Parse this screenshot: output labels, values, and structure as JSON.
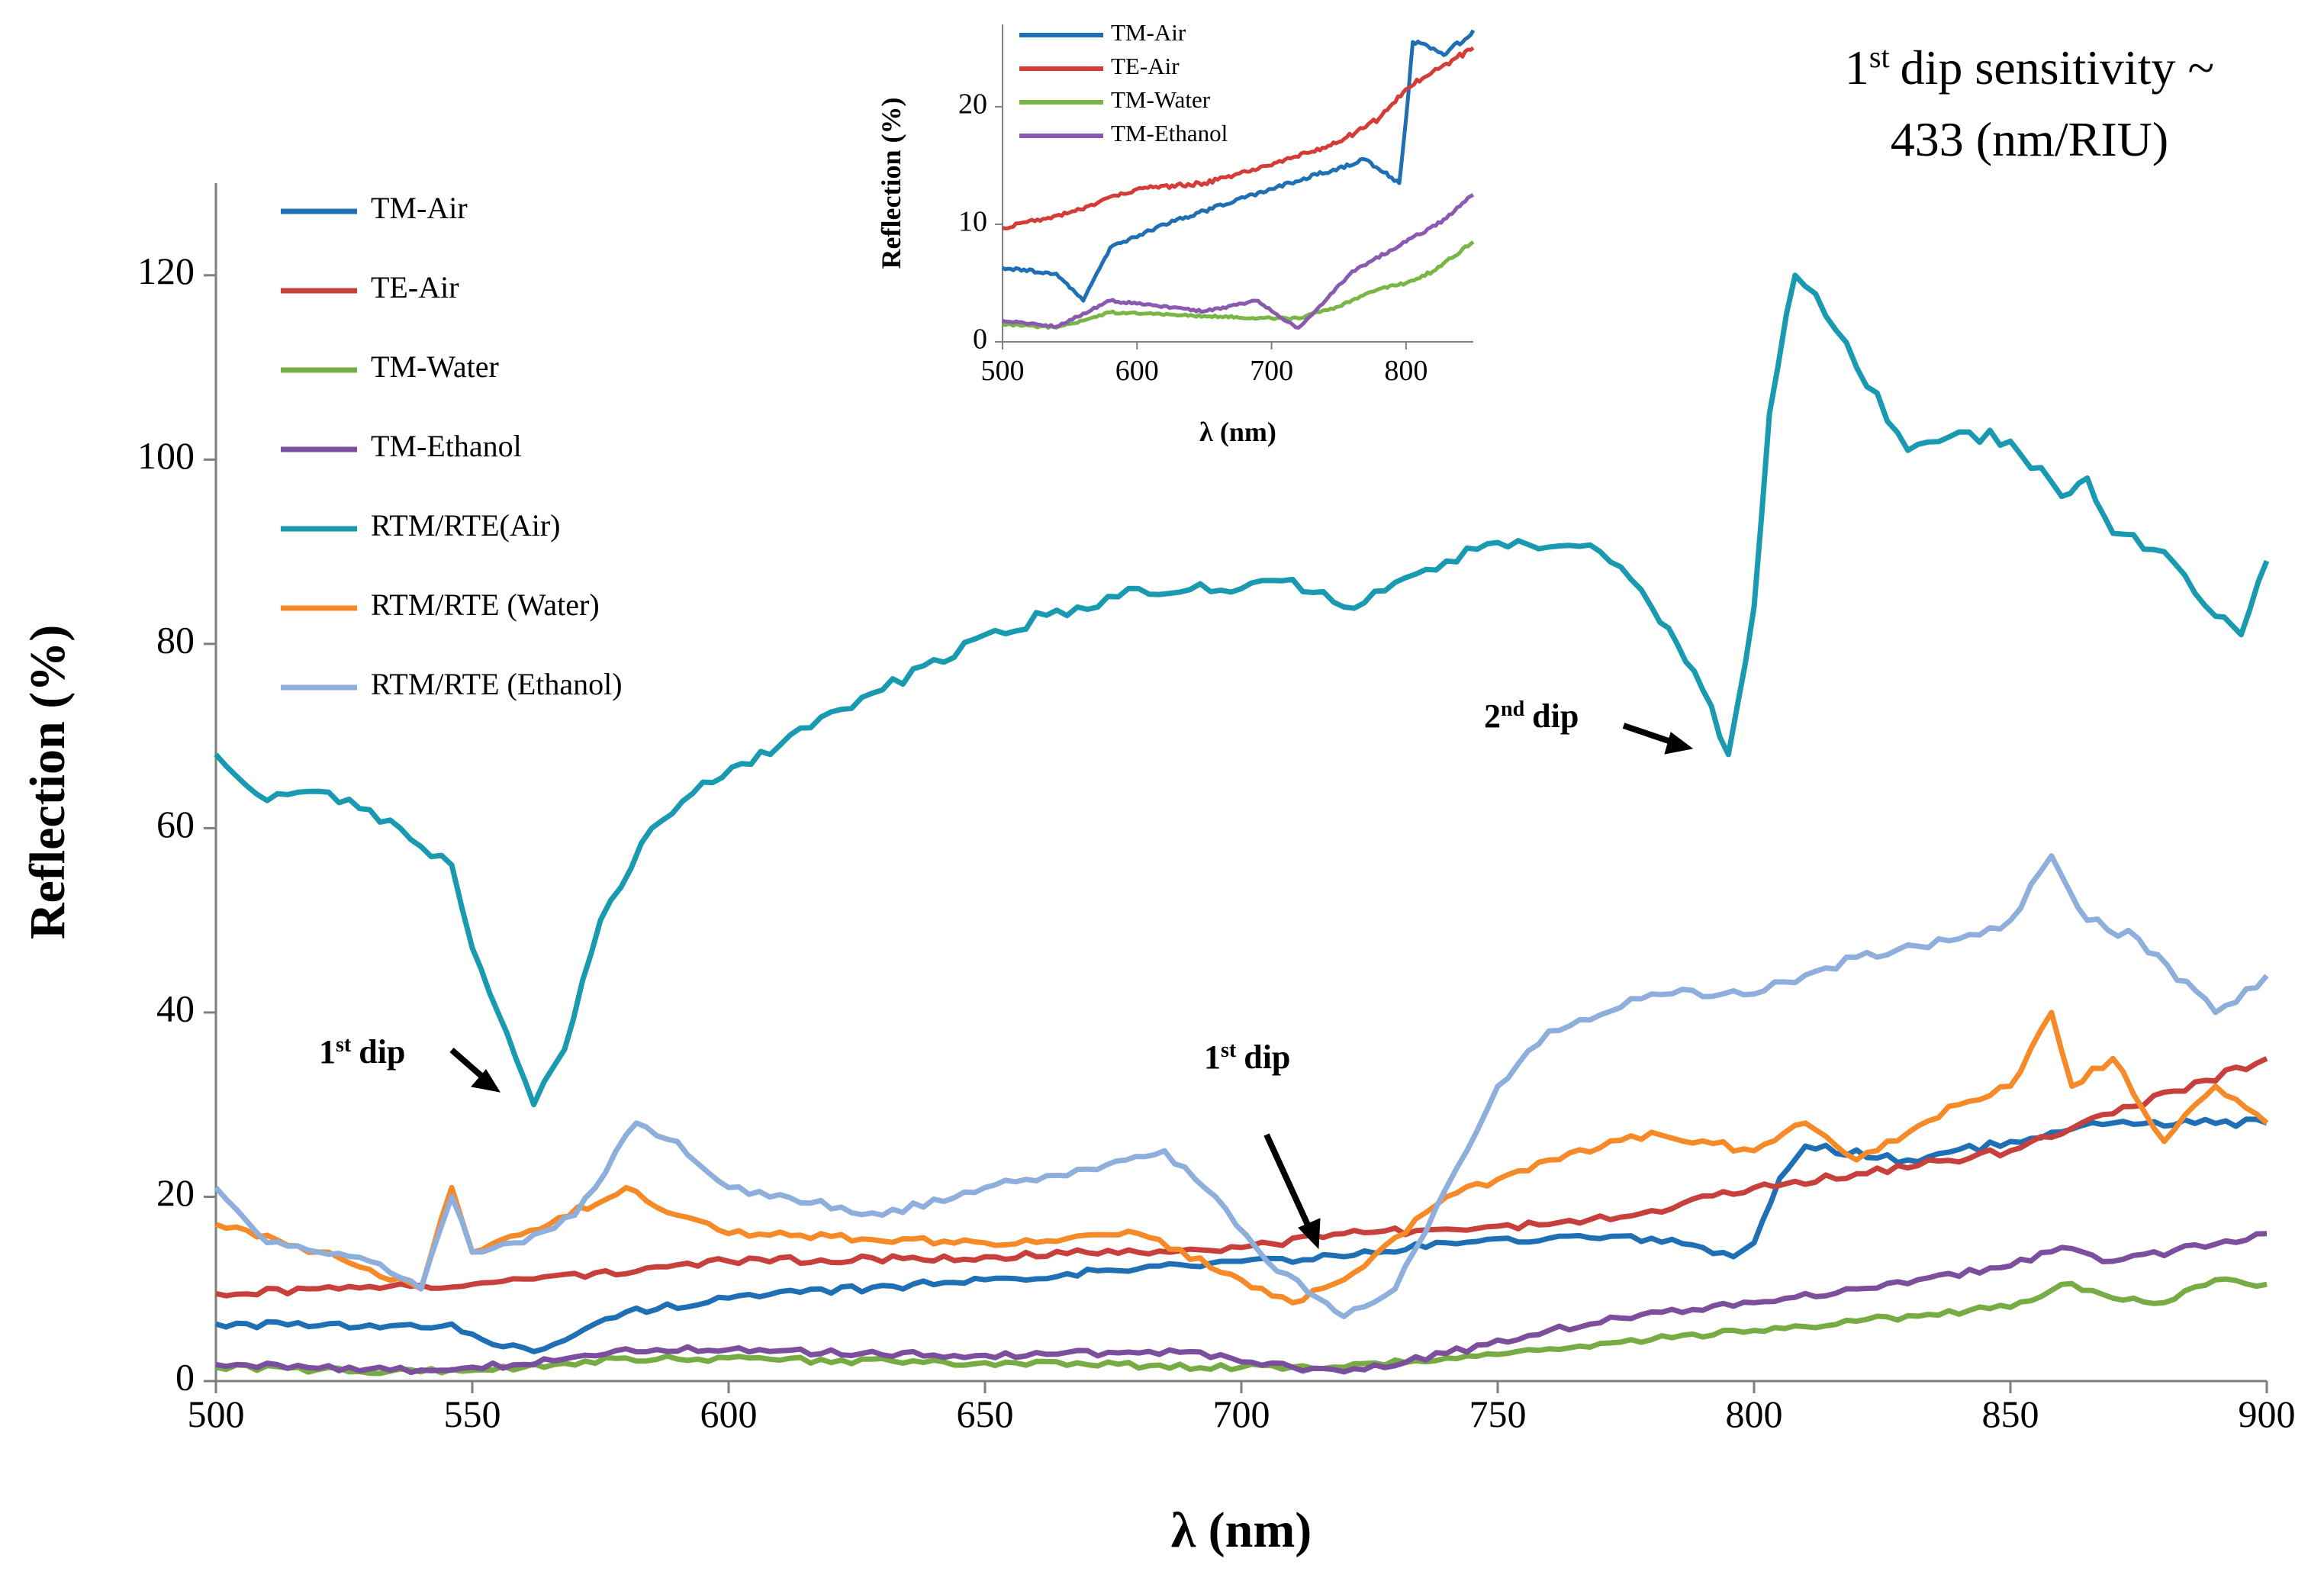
{
  "chart_data": [
    {
      "id": "main",
      "type": "line",
      "title": "",
      "xlabel": "λ (nm)",
      "ylabel": "Reflection (%)",
      "xlim": [
        500,
        900
      ],
      "ylim": [
        0,
        130
      ],
      "xticks": [
        500,
        550,
        600,
        650,
        700,
        750,
        800,
        850,
        900
      ],
      "yticks": [
        0,
        20,
        40,
        60,
        80,
        100,
        120
      ],
      "grid": false,
      "legend_position": "top-left",
      "series": [
        {
          "name": "TM-Air",
          "color": "#1f6fb4",
          "x": [
            500,
            520,
            540,
            546,
            552,
            562,
            570,
            580,
            600,
            650,
            700,
            720,
            740,
            760,
            780,
            790,
            796,
            800,
            805,
            810,
            830,
            850,
            870,
            900
          ],
          "y": [
            6.2,
            6.0,
            5.8,
            6.2,
            4.5,
            3.2,
            5.0,
            7.5,
            9.0,
            11.0,
            13.0,
            13.5,
            15.0,
            15.5,
            15.5,
            14.5,
            13.5,
            15.0,
            22.0,
            25.5,
            24.0,
            26.0,
            28.0,
            28.0
          ]
        },
        {
          "name": "TE-Air",
          "color": "#c8403c",
          "x": [
            500,
            550,
            600,
            650,
            700,
            720,
            740,
            760,
            780,
            800,
            820,
            850,
            870,
            900
          ],
          "y": [
            9.5,
            10.5,
            13.0,
            13.5,
            14.5,
            16.0,
            16.5,
            17.0,
            18.5,
            21.0,
            22.5,
            25.0,
            29.0,
            35.0
          ]
        },
        {
          "name": "TM-Water",
          "color": "#77ab43",
          "x": [
            500,
            540,
            560,
            580,
            650,
            700,
            720,
            740,
            760,
            780,
            800,
            820,
            850,
            860,
            870,
            880,
            890,
            900
          ],
          "y": [
            1.5,
            1.0,
            1.5,
            2.5,
            2.0,
            1.5,
            1.5,
            2.5,
            3.5,
            4.5,
            5.5,
            6.5,
            8.0,
            10.5,
            9.0,
            8.5,
            11.0,
            10.5
          ]
        },
        {
          "name": "TM-Ethanol",
          "color": "#7b4f9e",
          "x": [
            500,
            540,
            560,
            580,
            650,
            690,
            710,
            720,
            740,
            760,
            780,
            800,
            820,
            850,
            860,
            870,
            900
          ],
          "y": [
            1.8,
            1.2,
            1.8,
            3.5,
            2.8,
            3.2,
            1.5,
            1.0,
            3.0,
            5.5,
            7.5,
            8.5,
            10.0,
            12.5,
            14.5,
            13.0,
            16.0
          ]
        },
        {
          "name": "RTM/RTE(Air)",
          "color": "#199ab0",
          "x": [
            500,
            510,
            520,
            530,
            540,
            546,
            550,
            555,
            562,
            568,
            575,
            585,
            595,
            610,
            630,
            650,
            680,
            700,
            710,
            720,
            740,
            750,
            770,
            780,
            785,
            790,
            795,
            800,
            803,
            808,
            812,
            820,
            830,
            840,
            850,
            860,
            865,
            870,
            880,
            890,
            895,
            900
          ],
          "y": [
            68,
            63,
            64,
            62,
            58,
            56,
            47,
            40,
            30,
            36,
            50,
            60,
            65,
            69,
            75,
            81,
            86,
            86,
            87,
            84,
            89,
            91,
            90,
            84,
            80,
            75,
            68,
            84,
            105,
            120,
            118,
            110,
            101,
            103,
            102,
            96,
            98,
            92,
            90,
            83,
            81,
            89
          ]
        },
        {
          "name": "RTM/RTE (Water)",
          "color": "#f78a28",
          "x": [
            500,
            520,
            540,
            546,
            550,
            565,
            580,
            590,
            600,
            650,
            680,
            700,
            710,
            720,
            740,
            760,
            780,
            800,
            810,
            820,
            840,
            850,
            858,
            862,
            870,
            880,
            890,
            900
          ],
          "y": [
            17,
            14,
            10,
            21,
            14,
            17,
            21,
            18,
            16,
            15,
            16,
            11,
            8.5,
            11,
            20,
            24,
            27,
            25,
            28,
            24,
            30,
            32,
            40,
            32,
            35,
            26,
            32,
            28
          ]
        },
        {
          "name": "RTM/RTE (Ethanol)",
          "color": "#8eaedb",
          "x": [
            500,
            510,
            520,
            530,
            540,
            546,
            550,
            560,
            570,
            582,
            590,
            600,
            630,
            650,
            670,
            685,
            695,
            705,
            715,
            720,
            730,
            740,
            750,
            760,
            780,
            800,
            820,
            840,
            850,
            858,
            865,
            875,
            890,
            900
          ],
          "y": [
            21,
            15,
            14,
            13,
            10,
            20,
            14,
            15,
            18,
            28,
            26,
            21,
            18,
            21,
            23,
            25,
            20,
            13,
            9,
            7,
            10,
            21,
            32,
            38,
            42,
            42,
            46,
            48,
            50,
            57,
            50,
            48,
            40,
            44
          ]
        }
      ],
      "annotations": [
        {
          "text": "1st dip",
          "x": 562,
          "y": 30
        },
        {
          "text": "1st dip",
          "x": 716,
          "y": 14
        },
        {
          "text": "2nd dip",
          "x": 794,
          "y": 68
        }
      ],
      "note": "1st dip sensitivity ~ 433 (nm/RIU)"
    },
    {
      "id": "inset",
      "type": "line",
      "title": "",
      "xlabel": "λ (nm)",
      "ylabel": "Reflection (%)",
      "xlim": [
        500,
        850
      ],
      "ylim": [
        0,
        27
      ],
      "xticks": [
        500,
        600,
        700,
        800
      ],
      "yticks": [
        0,
        10,
        20
      ],
      "grid": false,
      "legend_position": "top-left",
      "series": [
        {
          "name": "TM-Air",
          "color": "#1f6fb4",
          "x": [
            500,
            540,
            560,
            580,
            620,
            700,
            770,
            795,
            800,
            805,
            830,
            850
          ],
          "y": [
            6.3,
            5.8,
            3.5,
            8.0,
            10.0,
            13.0,
            15.5,
            13.5,
            19.0,
            25.5,
            24.5,
            26.5
          ]
        },
        {
          "name": "TE-Air",
          "color": "#d63c37",
          "x": [
            500,
            550,
            600,
            650,
            700,
            750,
            780,
            800,
            820,
            850
          ],
          "y": [
            9.7,
            11.0,
            13.0,
            13.5,
            15.0,
            17.0,
            19.0,
            21.5,
            23.0,
            25.0
          ]
        },
        {
          "name": "TM-Water",
          "color": "#79b646",
          "x": [
            500,
            540,
            580,
            650,
            700,
            720,
            750,
            780,
            800,
            820,
            850
          ],
          "y": [
            1.5,
            1.2,
            2.5,
            2.2,
            2.0,
            2.0,
            3.0,
            4.5,
            5.0,
            6.0,
            8.5
          ]
        },
        {
          "name": "TM-Ethanol",
          "color": "#8a5ab0",
          "x": [
            500,
            540,
            580,
            650,
            690,
            710,
            720,
            740,
            760,
            800,
            830,
            850
          ],
          "y": [
            1.8,
            1.3,
            3.5,
            2.6,
            3.5,
            1.8,
            1.2,
            3.5,
            6.0,
            8.5,
            10.5,
            12.5
          ]
        }
      ]
    }
  ],
  "labels": {
    "annot_dip1_left": {
      "num": "1",
      "sup": "st",
      "word": "dip"
    },
    "annot_dip1_mid": {
      "num": "1",
      "sup": "st",
      "word": "dip"
    },
    "annot_dip2": {
      "num": "2",
      "sup": "nd",
      "word": "dip"
    },
    "sensitivity": {
      "num": "1",
      "sup": "st",
      "line1_rest": "dip sensitivity ~",
      "line2": "433 (nm/RIU)"
    }
  }
}
